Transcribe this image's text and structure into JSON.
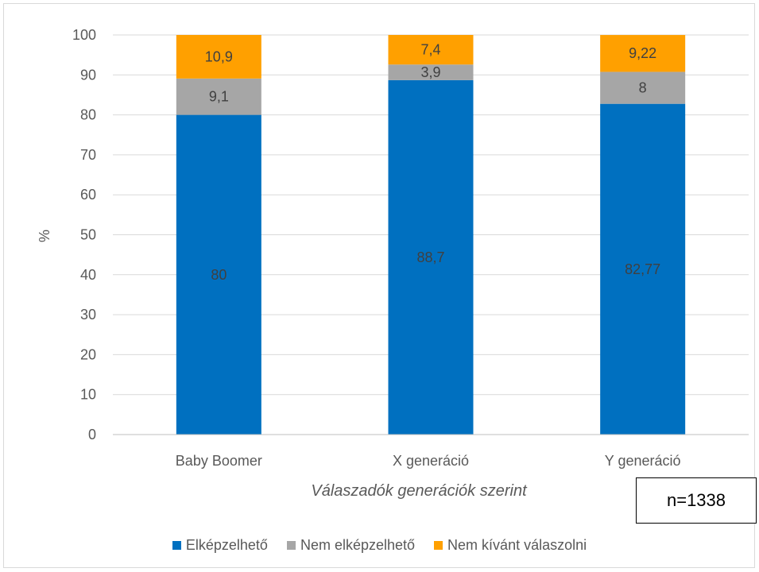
{
  "chart_data": {
    "type": "bar",
    "stacked": true,
    "categories": [
      "Baby Boomer",
      "X generáció",
      "Y generáció"
    ],
    "series": [
      {
        "name": "Elképzelhető",
        "color": "#0070C0",
        "values": [
          80,
          88.7,
          82.77
        ],
        "labels": [
          "80",
          "88,7",
          "82,77"
        ]
      },
      {
        "name": "Nem elképzelhető",
        "color": "#A6A6A6",
        "values": [
          9.1,
          3.9,
          8
        ],
        "labels": [
          "9,1",
          "3,9",
          "8"
        ]
      },
      {
        "name": "Nem kívánt válaszolni",
        "color": "#FFA000",
        "values": [
          10.9,
          7.4,
          9.22
        ],
        "labels": [
          "10,9",
          "7,4",
          "9,22"
        ]
      }
    ],
    "xlabel": "Válaszadók generációk szerint",
    "ylabel": "%",
    "ylim": [
      0,
      100
    ],
    "yticks": [
      0,
      10,
      20,
      30,
      40,
      50,
      60,
      70,
      80,
      90,
      100
    ],
    "grid": true,
    "legend_position": "bottom"
  },
  "annotation": {
    "text": "n=1338"
  }
}
